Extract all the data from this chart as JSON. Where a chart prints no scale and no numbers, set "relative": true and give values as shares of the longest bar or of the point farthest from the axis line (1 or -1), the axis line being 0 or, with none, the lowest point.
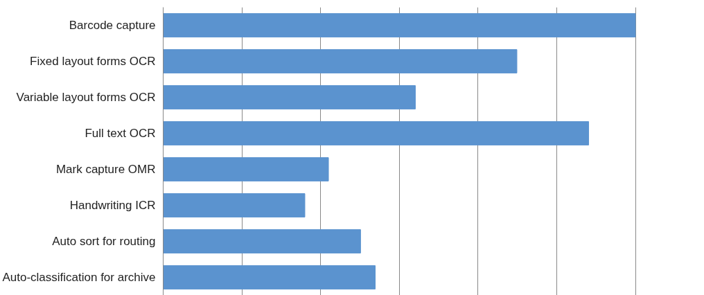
{
  "chart_data": {
    "type": "bar",
    "orientation": "horizontal",
    "relative": true,
    "categories": [
      "Barcode capture",
      "Fixed layout forms OCR",
      "Variable layout forms OCR",
      "Full text OCR",
      "Mark capture OMR",
      "Handwriting ICR",
      "Auto sort for routing",
      "Auto-classification for archive"
    ],
    "values": [
      1,
      0.749,
      0.534,
      0.901,
      0.35,
      0.3,
      0.418,
      0.449
    ],
    "color": "#5b93cf",
    "grid": "x",
    "tick_labels": "y"
  }
}
